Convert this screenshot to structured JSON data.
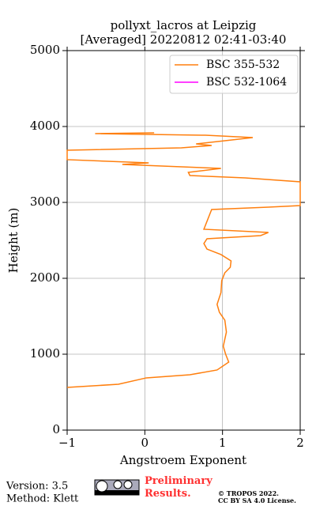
{
  "chart_data": {
    "type": "line",
    "title": "pollyxt_lacros at Leipzig",
    "subtitle": "[Averaged] 20220812 02:41-03:40",
    "x_label": "Angstroem Exponent",
    "y_label": "Height (m)",
    "xlim": [
      -1,
      2
    ],
    "ylim": [
      0,
      5000
    ],
    "xticks": [
      {
        "value": -1,
        "label": "−1"
      },
      0,
      1,
      2
    ],
    "yticks": [
      0,
      1000,
      2000,
      3000,
      4000,
      5000
    ],
    "grid": true,
    "legend": "upper right",
    "series": [
      {
        "name": "BSC 355-532",
        "color": "#ff7f0e",
        "x": [
          -1,
          -0.34,
          0.02,
          0.58,
          0.93,
          1.08,
          1.04,
          1.01,
          1.05,
          1.03,
          0.96,
          0.93,
          0.98,
          0.99,
          1.03,
          1.1,
          1.11,
          0.98,
          0.8,
          0.76,
          0.8,
          1.49,
          1.59,
          0.76,
          0.86,
          1.59,
          2.0,
          2.0,
          1.29,
          0.58,
          0.56,
          0.98,
          -0.29,
          0.05,
          -1,
          -1,
          0.47,
          0.86,
          0.66,
          1.03,
          1.39,
          0.78,
          -0.64,
          0.12
        ],
        "y": [
          562,
          604,
          688,
          729,
          792,
          896,
          1000,
          1104,
          1292,
          1448,
          1552,
          1656,
          1812,
          1969,
          2073,
          2146,
          2229,
          2313,
          2385,
          2458,
          2521,
          2563,
          2604,
          2646,
          2906,
          2938,
          2958,
          3271,
          3323,
          3354,
          3396,
          3448,
          3500,
          3521,
          3563,
          3688,
          3719,
          3750,
          3771,
          3813,
          3854,
          3885,
          3906,
          3917
        ]
      },
      {
        "name": "BSC 532-1064",
        "color": "#ff00ff",
        "x": [],
        "y": []
      }
    ]
  },
  "footer": {
    "version": "Version: 3.5",
    "method": "Method: Klett",
    "notice": "Preliminary Results.",
    "copyright": "© TROPOS 2022.",
    "license": "CC BY SA 4.0 License."
  }
}
